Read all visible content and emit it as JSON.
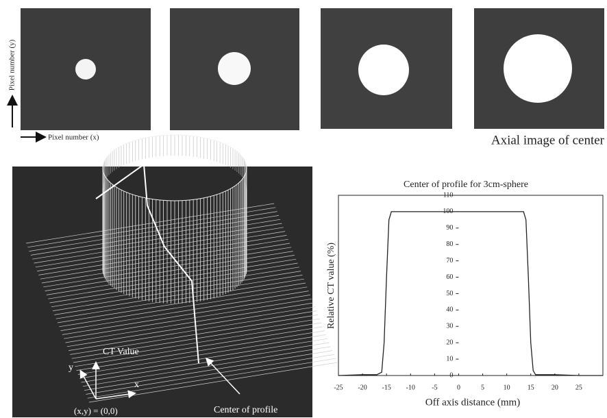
{
  "top_row": {
    "y_axis_label": "Pixel number (y)",
    "x_axis_label": "Pixel number (x)",
    "caption": "Axial image of center"
  },
  "surface_plot": {
    "z_label": "CT Value",
    "x_label": "x",
    "y_label": "y",
    "origin_label": "(x,y) = (0,0)",
    "annotation": "Center of profile"
  },
  "chart_data": {
    "type": "line",
    "title": "Center of profile for 3cm-sphere",
    "x_label": "Off axis distance (mm)",
    "y_label": "Relative CT value (%)",
    "series": [
      {
        "name": "Center of profile for 3cm-sphere",
        "color": "#222222",
        "x": [
          -25,
          -20,
          -17,
          -16,
          -15.5,
          -15,
          -14.5,
          -14,
          -10,
          -5,
          0,
          5,
          10,
          13.5,
          14,
          14.5,
          15,
          15.5,
          16,
          20,
          25,
          30
        ],
        "values": [
          0,
          0.5,
          0.5,
          2,
          20,
          60,
          95,
          100,
          100,
          100,
          100,
          100,
          100,
          100,
          95,
          60,
          20,
          3,
          0.5,
          0.5,
          0,
          0
        ]
      }
    ],
    "xlim": [
      -25,
      30
    ],
    "ylim": [
      0,
      110
    ],
    "xticks": [
      -25,
      -20,
      -15,
      -10,
      -5,
      0,
      5,
      10,
      15,
      20,
      25
    ],
    "yticks": [
      0,
      10,
      20,
      30,
      40,
      50,
      60,
      70,
      80,
      90,
      100,
      110
    ]
  }
}
